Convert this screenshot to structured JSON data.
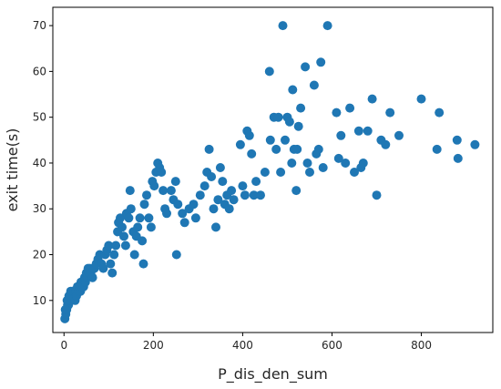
{
  "chart_data": {
    "type": "scatter",
    "title": "",
    "xlabel": "P_dis_den_sum",
    "ylabel": "exit time(s)",
    "xlim": [
      -25,
      960
    ],
    "ylim": [
      3,
      74
    ],
    "xticks": [
      0,
      200,
      400,
      600,
      800
    ],
    "yticks": [
      10,
      20,
      30,
      40,
      50,
      60,
      70
    ],
    "grid": false,
    "marker_color": "#1f77b4",
    "series": [
      {
        "points": [
          [
            2,
            6
          ],
          [
            4,
            7
          ],
          [
            6,
            8
          ],
          [
            8,
            9
          ],
          [
            10,
            9
          ],
          [
            12,
            10
          ],
          [
            14,
            10
          ],
          [
            16,
            11
          ],
          [
            18,
            11
          ],
          [
            20,
            12
          ],
          [
            3,
            8
          ],
          [
            7,
            10
          ],
          [
            11,
            11
          ],
          [
            15,
            12
          ],
          [
            19,
            12
          ],
          [
            22,
            12
          ],
          [
            26,
            12
          ],
          [
            30,
            13
          ],
          [
            34,
            13
          ],
          [
            38,
            14
          ],
          [
            42,
            14
          ],
          [
            46,
            15
          ],
          [
            50,
            16
          ],
          [
            54,
            17
          ],
          [
            58,
            17
          ],
          [
            25,
            10
          ],
          [
            28,
            11
          ],
          [
            33,
            12
          ],
          [
            37,
            12
          ],
          [
            40,
            13
          ],
          [
            44,
            13
          ],
          [
            48,
            14
          ],
          [
            52,
            15
          ],
          [
            56,
            16
          ],
          [
            60,
            16
          ],
          [
            64,
            15
          ],
          [
            68,
            17
          ],
          [
            72,
            18
          ],
          [
            76,
            19
          ],
          [
            80,
            20
          ],
          [
            84,
            18
          ],
          [
            88,
            17
          ],
          [
            92,
            20
          ],
          [
            96,
            21
          ],
          [
            100,
            22
          ],
          [
            104,
            18
          ],
          [
            108,
            16
          ],
          [
            112,
            20
          ],
          [
            116,
            22
          ],
          [
            120,
            25
          ],
          [
            122,
            27
          ],
          [
            126,
            28
          ],
          [
            130,
            26
          ],
          [
            134,
            24
          ],
          [
            138,
            22
          ],
          [
            140,
            29
          ],
          [
            145,
            28
          ],
          [
            148,
            34
          ],
          [
            150,
            30
          ],
          [
            155,
            25
          ],
          [
            158,
            20
          ],
          [
            162,
            24
          ],
          [
            165,
            26
          ],
          [
            170,
            28
          ],
          [
            175,
            23
          ],
          [
            178,
            18
          ],
          [
            180,
            31
          ],
          [
            185,
            33
          ],
          [
            190,
            28
          ],
          [
            195,
            26
          ],
          [
            198,
            36
          ],
          [
            202,
            35
          ],
          [
            206,
            38
          ],
          [
            210,
            40
          ],
          [
            214,
            39
          ],
          [
            218,
            38
          ],
          [
            222,
            34
          ],
          [
            226,
            30
          ],
          [
            230,
            29
          ],
          [
            240,
            34
          ],
          [
            245,
            32
          ],
          [
            250,
            36
          ],
          [
            252,
            20
          ],
          [
            255,
            31
          ],
          [
            265,
            29
          ],
          [
            270,
            27
          ],
          [
            280,
            30
          ],
          [
            290,
            31
          ],
          [
            295,
            28
          ],
          [
            305,
            33
          ],
          [
            315,
            35
          ],
          [
            320,
            38
          ],
          [
            325,
            43
          ],
          [
            330,
            37
          ],
          [
            335,
            30
          ],
          [
            340,
            26
          ],
          [
            345,
            32
          ],
          [
            350,
            39
          ],
          [
            355,
            36
          ],
          [
            360,
            31
          ],
          [
            365,
            33
          ],
          [
            370,
            30
          ],
          [
            375,
            34
          ],
          [
            380,
            32
          ],
          [
            395,
            44
          ],
          [
            400,
            35
          ],
          [
            405,
            33
          ],
          [
            410,
            47
          ],
          [
            415,
            46
          ],
          [
            420,
            42
          ],
          [
            425,
            33
          ],
          [
            430,
            36
          ],
          [
            440,
            33
          ],
          [
            450,
            38
          ],
          [
            460,
            60
          ],
          [
            462,
            45
          ],
          [
            470,
            50
          ],
          [
            475,
            43
          ],
          [
            480,
            50
          ],
          [
            485,
            38
          ],
          [
            490,
            70
          ],
          [
            495,
            45
          ],
          [
            500,
            50
          ],
          [
            505,
            49
          ],
          [
            510,
            40
          ],
          [
            512,
            56
          ],
          [
            515,
            43
          ],
          [
            520,
            34
          ],
          [
            522,
            43
          ],
          [
            525,
            48
          ],
          [
            530,
            52
          ],
          [
            540,
            61
          ],
          [
            545,
            40
          ],
          [
            550,
            38
          ],
          [
            560,
            57
          ],
          [
            565,
            42
          ],
          [
            570,
            43
          ],
          [
            575,
            62
          ],
          [
            580,
            39
          ],
          [
            590,
            70
          ],
          [
            610,
            51
          ],
          [
            615,
            41
          ],
          [
            620,
            46
          ],
          [
            630,
            40
          ],
          [
            640,
            52
          ],
          [
            650,
            38
          ],
          [
            660,
            47
          ],
          [
            665,
            39
          ],
          [
            670,
            40
          ],
          [
            680,
            47
          ],
          [
            690,
            54
          ],
          [
            700,
            33
          ],
          [
            710,
            45
          ],
          [
            720,
            44
          ],
          [
            730,
            51
          ],
          [
            750,
            46
          ],
          [
            800,
            54
          ],
          [
            835,
            43
          ],
          [
            840,
            51
          ],
          [
            880,
            45
          ],
          [
            882,
            41
          ],
          [
            920,
            44
          ]
        ]
      }
    ]
  }
}
